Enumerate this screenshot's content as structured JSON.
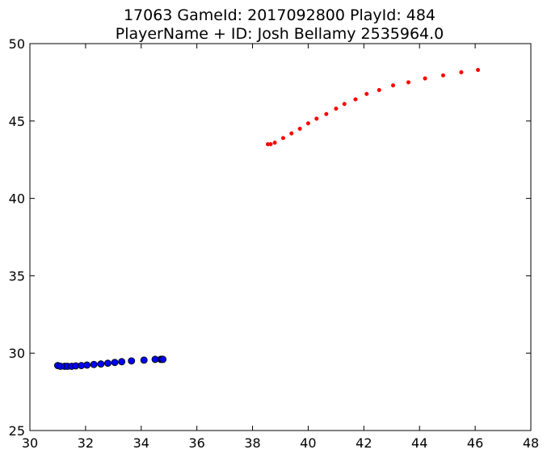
{
  "chart_data": {
    "type": "scatter",
    "title_lines": [
      "17063 GameId: 2017092800 PlayId: 484",
      "PlayerName + ID: Josh Bellamy 2535964.0"
    ],
    "xlabel": "",
    "ylabel": "",
    "xlim": [
      30,
      48
    ],
    "ylim": [
      25,
      50
    ],
    "xticks": [
      30,
      32,
      34,
      36,
      38,
      40,
      42,
      44,
      46,
      48
    ],
    "yticks": [
      25,
      30,
      35,
      40,
      45,
      50
    ],
    "grid": false,
    "legend": "none",
    "series": [
      {
        "color": "#0000ff",
        "edge_color": "#000000",
        "marker": "large-circle",
        "points": [
          [
            31.0,
            29.2
          ],
          [
            31.1,
            29.15
          ],
          [
            31.25,
            29.15
          ],
          [
            31.35,
            29.15
          ],
          [
            31.5,
            29.15
          ],
          [
            31.65,
            29.18
          ],
          [
            31.85,
            29.2
          ],
          [
            32.05,
            29.23
          ],
          [
            32.3,
            29.27
          ],
          [
            32.55,
            29.3
          ],
          [
            32.8,
            29.35
          ],
          [
            33.05,
            29.4
          ],
          [
            33.3,
            29.45
          ],
          [
            33.65,
            29.5
          ],
          [
            34.1,
            29.55
          ],
          [
            34.5,
            29.6
          ],
          [
            34.7,
            29.6
          ],
          [
            34.75,
            29.6
          ],
          [
            34.78,
            29.6
          ]
        ]
      },
      {
        "color": "#ff0000",
        "edge_color": "#ff0000",
        "marker": "small-dot",
        "points": [
          [
            38.55,
            43.5
          ],
          [
            38.65,
            43.5
          ],
          [
            38.8,
            43.6
          ],
          [
            39.1,
            43.9
          ],
          [
            39.4,
            44.2
          ],
          [
            39.7,
            44.5
          ],
          [
            40.0,
            44.85
          ],
          [
            40.3,
            45.15
          ],
          [
            40.65,
            45.45
          ],
          [
            41.0,
            45.8
          ],
          [
            41.3,
            46.1
          ],
          [
            41.7,
            46.4
          ],
          [
            42.1,
            46.75
          ],
          [
            42.55,
            47.0
          ],
          [
            43.05,
            47.3
          ],
          [
            43.6,
            47.5
          ],
          [
            44.2,
            47.75
          ],
          [
            44.85,
            47.95
          ],
          [
            45.5,
            48.15
          ],
          [
            46.1,
            48.3
          ]
        ]
      }
    ]
  }
}
